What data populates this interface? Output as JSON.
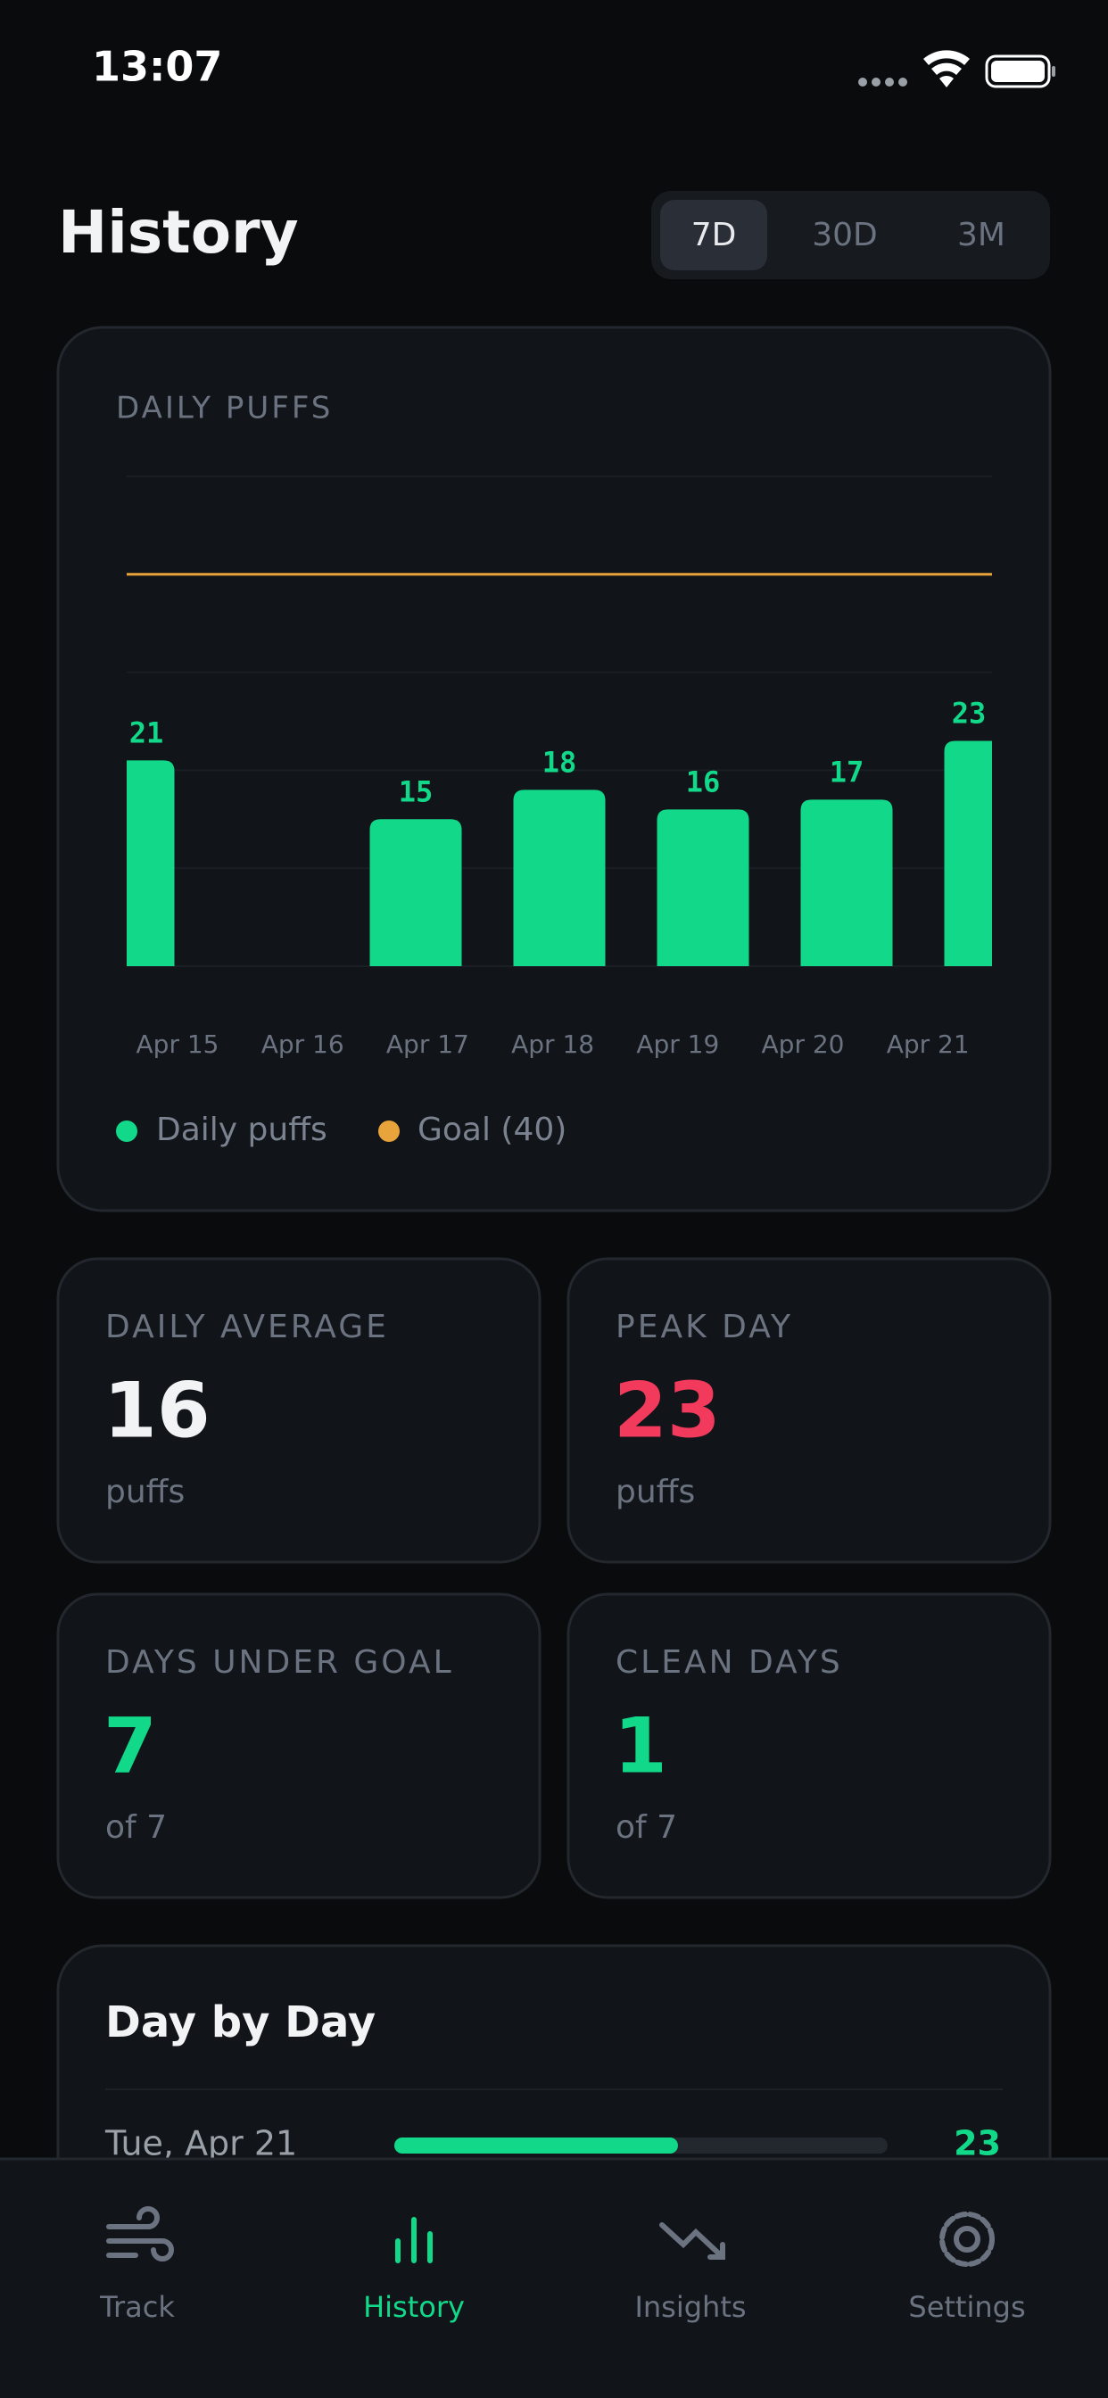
{
  "status_bar": {
    "time": "13:07"
  },
  "header": {
    "title": "History",
    "ranges": [
      "7D",
      "30D",
      "3M"
    ],
    "active_range": 0
  },
  "chart_data": {
    "type": "bar",
    "title": "DAILY PUFFS",
    "categories": [
      "Apr 15",
      "Apr 16",
      "Apr 17",
      "Apr 18",
      "Apr 19",
      "Apr 20",
      "Apr 21"
    ],
    "series": [
      {
        "name": "Daily puffs",
        "color": "#12d98a",
        "values": [
          21,
          0,
          15,
          18,
          16,
          17,
          23
        ]
      }
    ],
    "goal": {
      "name": "Goal (40)",
      "value": 40,
      "color": "#e8a33a"
    },
    "ylim": [
      0,
      50
    ],
    "yticks": [
      0,
      10,
      20,
      30,
      40,
      50
    ],
    "grid": true
  },
  "stats": [
    {
      "label": "DAILY AVERAGE",
      "value": 16,
      "unit": "puffs",
      "color": "#f2f3f5"
    },
    {
      "label": "PEAK DAY",
      "value": 23,
      "unit": "puffs",
      "color": "#f23b5c"
    },
    {
      "label": "DAYS UNDER GOAL",
      "value": 7,
      "unit": "of 7",
      "color": "#12d98a"
    },
    {
      "label": "CLEAN DAYS",
      "value": 1,
      "unit": "of 7",
      "color": "#12d98a"
    }
  ],
  "day_by_day": {
    "title": "Day by Day",
    "rows": [
      {
        "date": "Tue, Apr 21",
        "value": 23
      }
    ]
  },
  "nav": {
    "items": [
      "Track",
      "History",
      "Insights",
      "Settings"
    ],
    "active": 1
  }
}
